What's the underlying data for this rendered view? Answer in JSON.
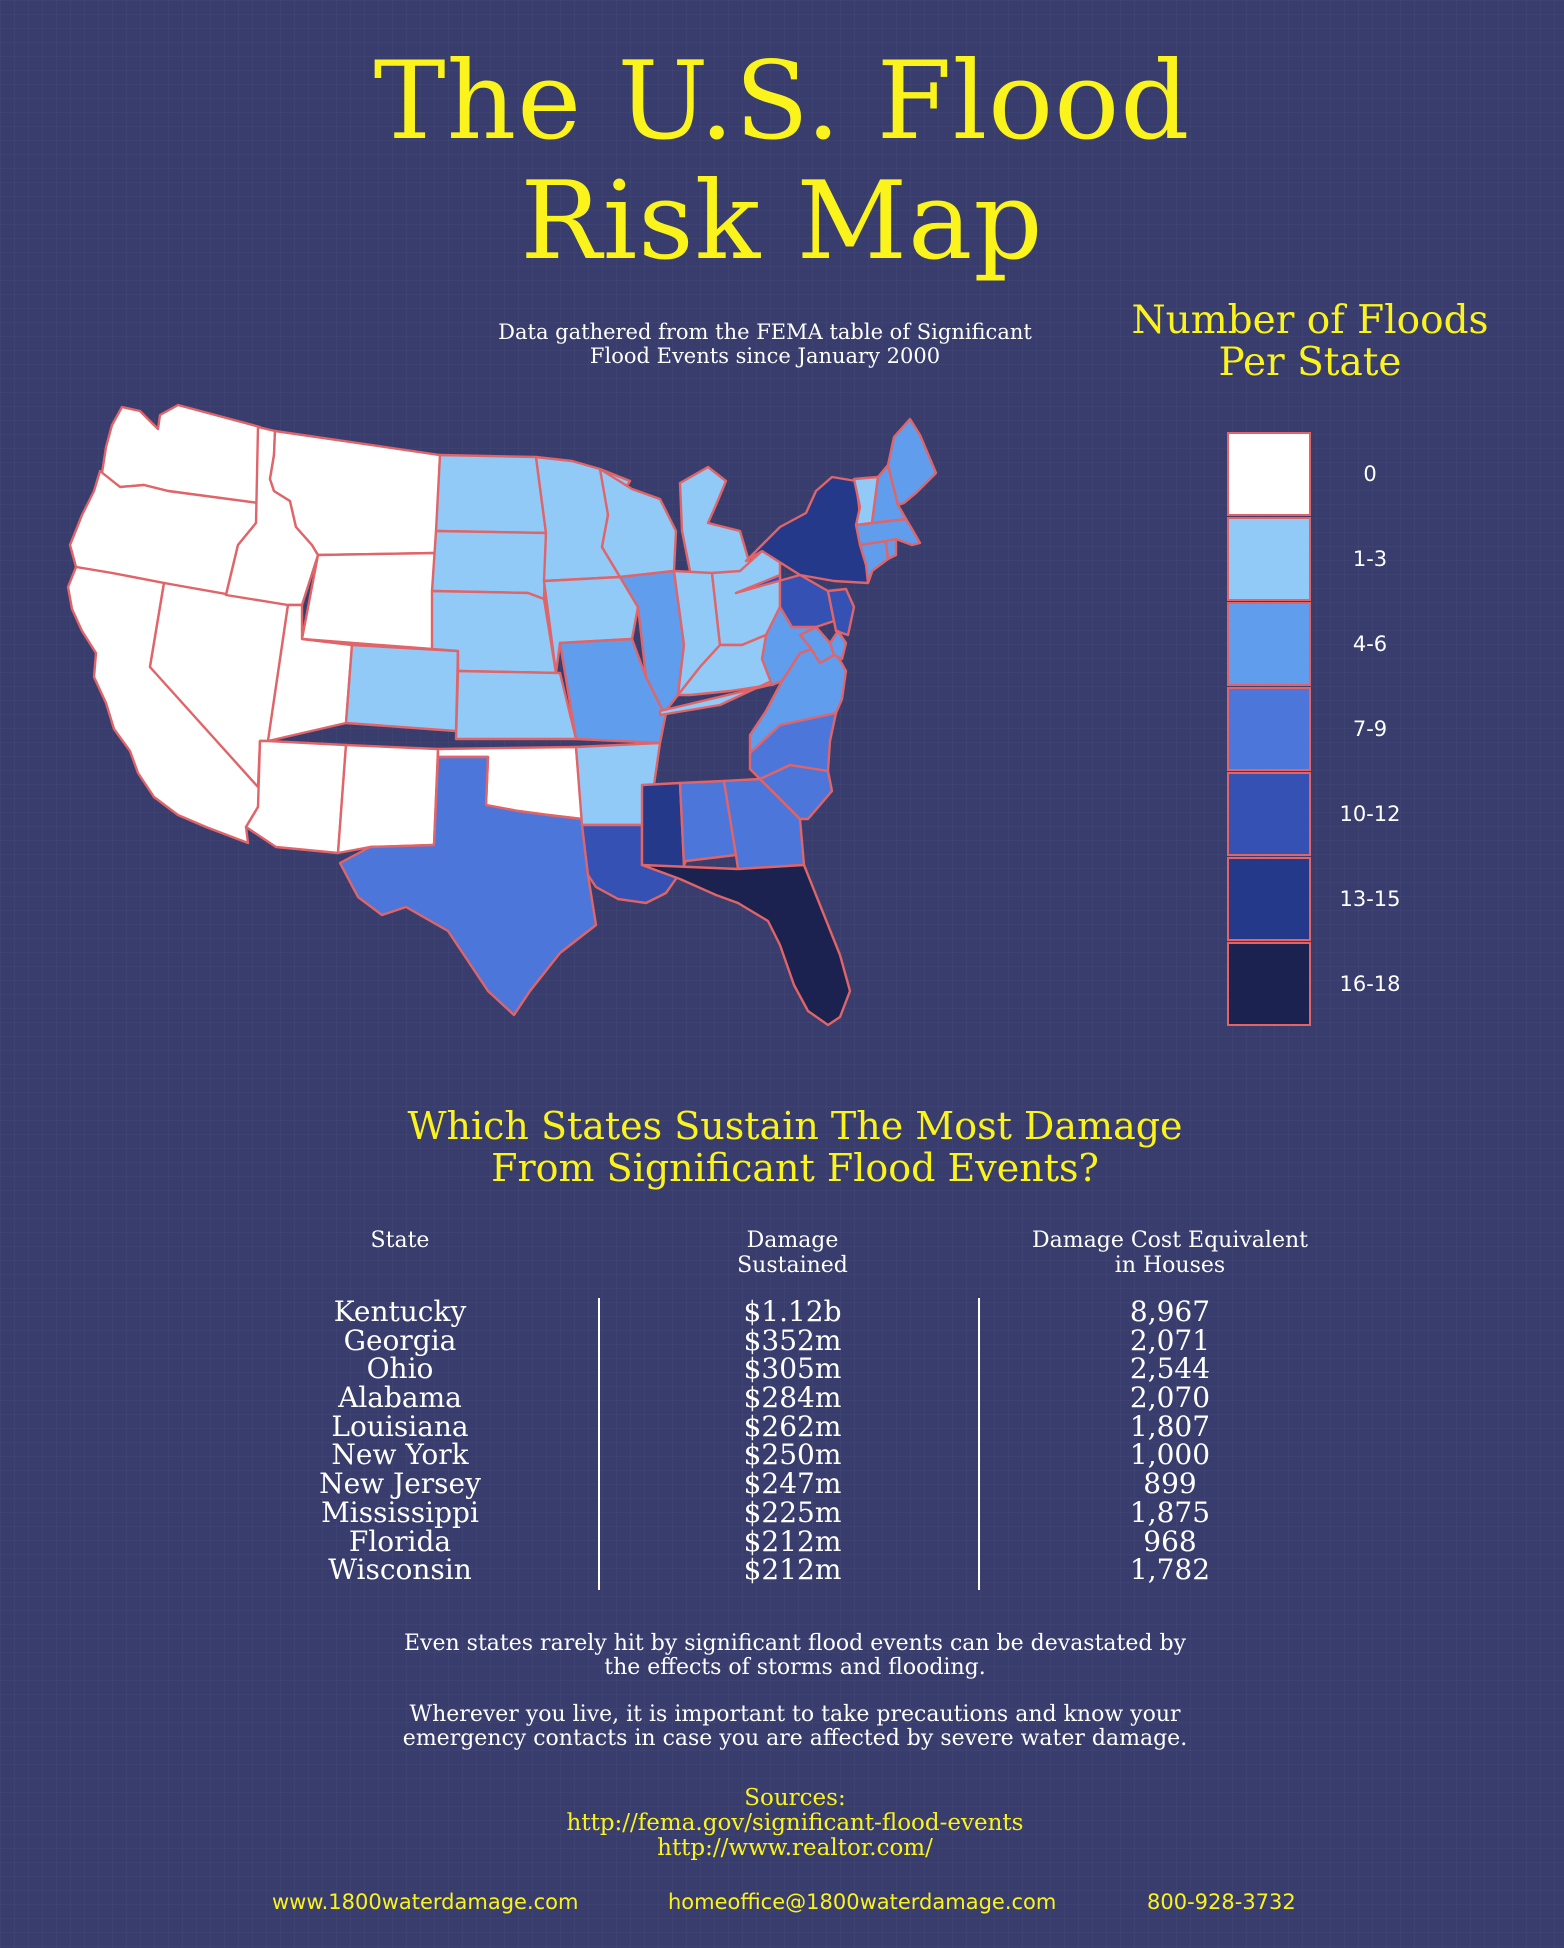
{
  "title_lines": [
    "The U.S. Flood",
    "Risk Map"
  ],
  "subtitle_lines": [
    "Data gathered from the FEMA table of Significant",
    "Flood Events since January 2000"
  ],
  "legend": {
    "title_lines": [
      "Number of Floods",
      "Per State"
    ],
    "bins": [
      {
        "label": "0",
        "color": "#ffffff"
      },
      {
        "label": "1-3",
        "color": "#91c9f7"
      },
      {
        "label": "4-6",
        "color": "#619ded"
      },
      {
        "label": "7-9",
        "color": "#4d76da"
      },
      {
        "label": "10-12",
        "color": "#3451b3"
      },
      {
        "label": "13-15",
        "color": "#243989"
      },
      {
        "label": "16-18",
        "color": "#1b2250"
      }
    ]
  },
  "map_state_bins": {
    "WA": 0,
    "OR": 0,
    "CA": 0,
    "NV": 0,
    "ID": 0,
    "MT": 0,
    "WY": 0,
    "UT": 0,
    "AZ": 0,
    "NM": 0,
    "OK": 0,
    "CO": 1,
    "ND": 1,
    "SD": 1,
    "NE": 1,
    "KS": 1,
    "MN": 1,
    "IA": 1,
    "WI": 1,
    "MI": 1,
    "IN": 1,
    "OH": 1,
    "KY": 1,
    "TN": 1,
    "AR": 1,
    "VT": 1,
    "MO": 2,
    "IL": 2,
    "WV": 2,
    "VA": 2,
    "ME": 2,
    "NH": 2,
    "MA": 2,
    "CT": 2,
    "RI": 2,
    "MD": 2,
    "DE": 2,
    "TX": 3,
    "NC": 3,
    "SC": 3,
    "GA": 3,
    "AL": 3,
    "PA": 4,
    "NJ": 4,
    "LA": 4,
    "NY": 5,
    "MS": 5,
    "FL": 6
  },
  "section_title_lines": [
    "Which States Sustain The Most Damage",
    "From Significant Flood Events?"
  ],
  "table": {
    "headers": {
      "state": [
        "State"
      ],
      "damage": [
        "Damage",
        "Sustained"
      ],
      "houses": [
        "Damage Cost Equivalent",
        "in Houses"
      ]
    },
    "rows": [
      {
        "state": "Kentucky",
        "damage": "$1.12b",
        "houses": "8,967"
      },
      {
        "state": "Georgia",
        "damage": "$352m",
        "houses": "2,071"
      },
      {
        "state": "Ohio",
        "damage": "$305m",
        "houses": "2,544"
      },
      {
        "state": "Alabama",
        "damage": "$284m",
        "houses": "2,070"
      },
      {
        "state": "Louisiana",
        "damage": "$262m",
        "houses": "1,807"
      },
      {
        "state": "New York",
        "damage": "$250m",
        "houses": "1,000"
      },
      {
        "state": "New Jersey",
        "damage": "$247m",
        "houses": "899"
      },
      {
        "state": "Mississippi",
        "damage": "$225m",
        "houses": "1,875"
      },
      {
        "state": "Florida",
        "damage": "$212m",
        "houses": "968"
      },
      {
        "state": "Wisconsin",
        "damage": "$212m",
        "houses": "1,782"
      }
    ]
  },
  "notes": [
    [
      "Even states rarely hit by significant flood events can be devastated by",
      "the effects of storms and flooding."
    ],
    [
      "Wherever you live, it is important to take precautions and know your",
      "emergency contacts in case you are affected by severe water damage."
    ]
  ],
  "sources": {
    "label": "Sources:",
    "links": [
      "http://fema.gov/significant-flood-events",
      "http://www.realtor.com/"
    ]
  },
  "footer": {
    "website": "www.1800waterdamage.com",
    "email": "homeoffice@1800waterdamage.com",
    "phone": "800-928-3732"
  },
  "chart_data": {
    "type": "table",
    "title": "Which States Sustain The Most Damage From Significant Flood Events?",
    "columns": [
      "State",
      "Damage Sustained",
      "Damage Cost Equivalent in Houses"
    ],
    "rows": [
      [
        "Kentucky",
        "$1.12b",
        "8,967"
      ],
      [
        "Georgia",
        "$352m",
        "2,071"
      ],
      [
        "Ohio",
        "$305m",
        "2,544"
      ],
      [
        "Alabama",
        "$284m",
        "2,070"
      ],
      [
        "Louisiana",
        "$262m",
        "1,807"
      ],
      [
        "New York",
        "$250m",
        "1,000"
      ],
      [
        "New Jersey",
        "$247m",
        "899"
      ],
      [
        "Mississippi",
        "$225m",
        "1,875"
      ],
      [
        "Florida",
        "$212m",
        "968"
      ],
      [
        "Wisconsin",
        "$212m",
        "1,782"
      ]
    ],
    "map_legend": {
      "title": "Number of Floods Per State",
      "bins": [
        "0",
        "1-3",
        "4-6",
        "7-9",
        "10-12",
        "13-15",
        "16-18"
      ]
    }
  }
}
